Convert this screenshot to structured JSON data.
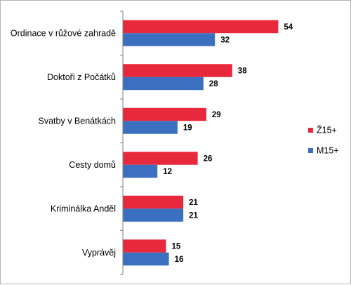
{
  "chart_data": {
    "type": "bar",
    "orientation": "horizontal",
    "categories": [
      "Ordinace v růžové zahradě",
      "Doktoři z Počátků",
      "Svatby v Benátkách",
      "Cesty domů",
      "Kriminálka Anděl",
      "Vyprávěj"
    ],
    "series": [
      {
        "name": "Ž15+",
        "color": "#e8283c",
        "values": [
          54,
          38,
          29,
          26,
          21,
          15
        ]
      },
      {
        "name": "M15+",
        "color": "#3b6fbf",
        "values": [
          32,
          28,
          19,
          12,
          21,
          16
        ]
      }
    ],
    "xlim": [
      0,
      60
    ],
    "grid": false,
    "data_labels": true,
    "legend_position": "right"
  }
}
